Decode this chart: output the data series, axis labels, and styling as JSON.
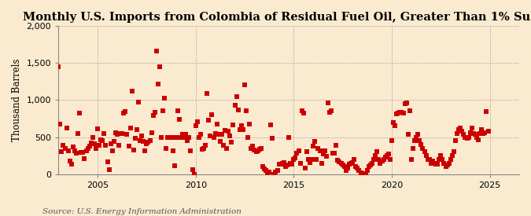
{
  "title": "Monthly U.S. Imports from Colombia of Residual Fuel Oil, Greater Than 1% Sulfur",
  "ylabel": "Thousand Barrels",
  "source": "Source: U.S. Energy Information Administration",
  "background_color": "#faebd0",
  "marker_color": "#cc0000",
  "marker_size": 16,
  "xlim": [
    2003.0,
    2026.5
  ],
  "ylim": [
    0,
    2000
  ],
  "yticks": [
    0,
    500,
    1000,
    1500,
    2000
  ],
  "xticks": [
    2005,
    2010,
    2015,
    2020,
    2025
  ],
  "grid_color": "#aaaaaa",
  "title_fontsize": 10.5,
  "ylabel_fontsize": 8.5,
  "source_fontsize": 7.5,
  "data": [
    1450,
    670,
    300,
    390,
    350,
    620,
    320,
    180,
    130,
    370,
    310,
    280,
    550,
    820,
    290,
    290,
    210,
    320,
    350,
    380,
    420,
    490,
    410,
    350,
    610,
    390,
    460,
    450,
    550,
    390,
    170,
    60,
    410,
    320,
    440,
    560,
    540,
    390,
    550,
    550,
    820,
    840,
    540,
    380,
    620,
    1120,
    330,
    480,
    600,
    970,
    450,
    520,
    440,
    320,
    410,
    430,
    450,
    560,
    790,
    830,
    1660,
    1220,
    1450,
    500,
    850,
    1030,
    350,
    500,
    500,
    500,
    310,
    110,
    500,
    860,
    740,
    490,
    540,
    500,
    540,
    450,
    500,
    310,
    60,
    0,
    650,
    710,
    500,
    540,
    340,
    350,
    390,
    1090,
    730,
    520,
    800,
    500,
    550,
    680,
    540,
    440,
    540,
    390,
    590,
    350,
    580,
    520,
    430,
    660,
    930,
    1050,
    870,
    600,
    650,
    600,
    1200,
    860,
    500,
    680,
    350,
    380,
    330,
    300,
    310,
    340,
    350,
    100,
    70,
    50,
    0,
    30,
    660,
    480,
    0,
    30,
    50,
    130,
    140,
    150,
    160,
    100,
    120,
    500,
    150,
    140,
    200,
    220,
    280,
    310,
    150,
    850,
    820,
    80,
    300,
    200,
    160,
    200,
    380,
    440,
    200,
    350,
    310,
    150,
    270,
    310,
    240,
    960,
    830,
    850,
    280,
    280,
    390,
    190,
    170,
    150,
    120,
    100,
    50,
    80,
    130,
    150,
    160,
    200,
    100,
    80,
    50,
    20,
    10,
    5,
    10,
    50,
    100,
    120,
    150,
    200,
    250,
    300,
    200,
    150,
    180,
    200,
    230,
    250,
    270,
    200,
    450,
    700,
    650,
    810,
    820,
    830,
    830,
    820,
    950,
    960,
    540,
    855,
    200,
    350,
    450,
    500,
    540,
    450,
    400,
    350,
    300,
    250,
    200,
    200,
    150,
    180,
    150,
    130,
    140,
    200,
    250,
    200,
    150,
    100,
    120,
    150,
    200,
    250,
    300,
    450,
    550,
    600,
    620,
    580,
    540,
    500,
    480,
    490,
    560,
    620,
    550,
    540,
    500,
    460,
    550,
    600,
    550,
    560,
    845,
    580
  ],
  "start_year": 2003,
  "start_month": 1
}
